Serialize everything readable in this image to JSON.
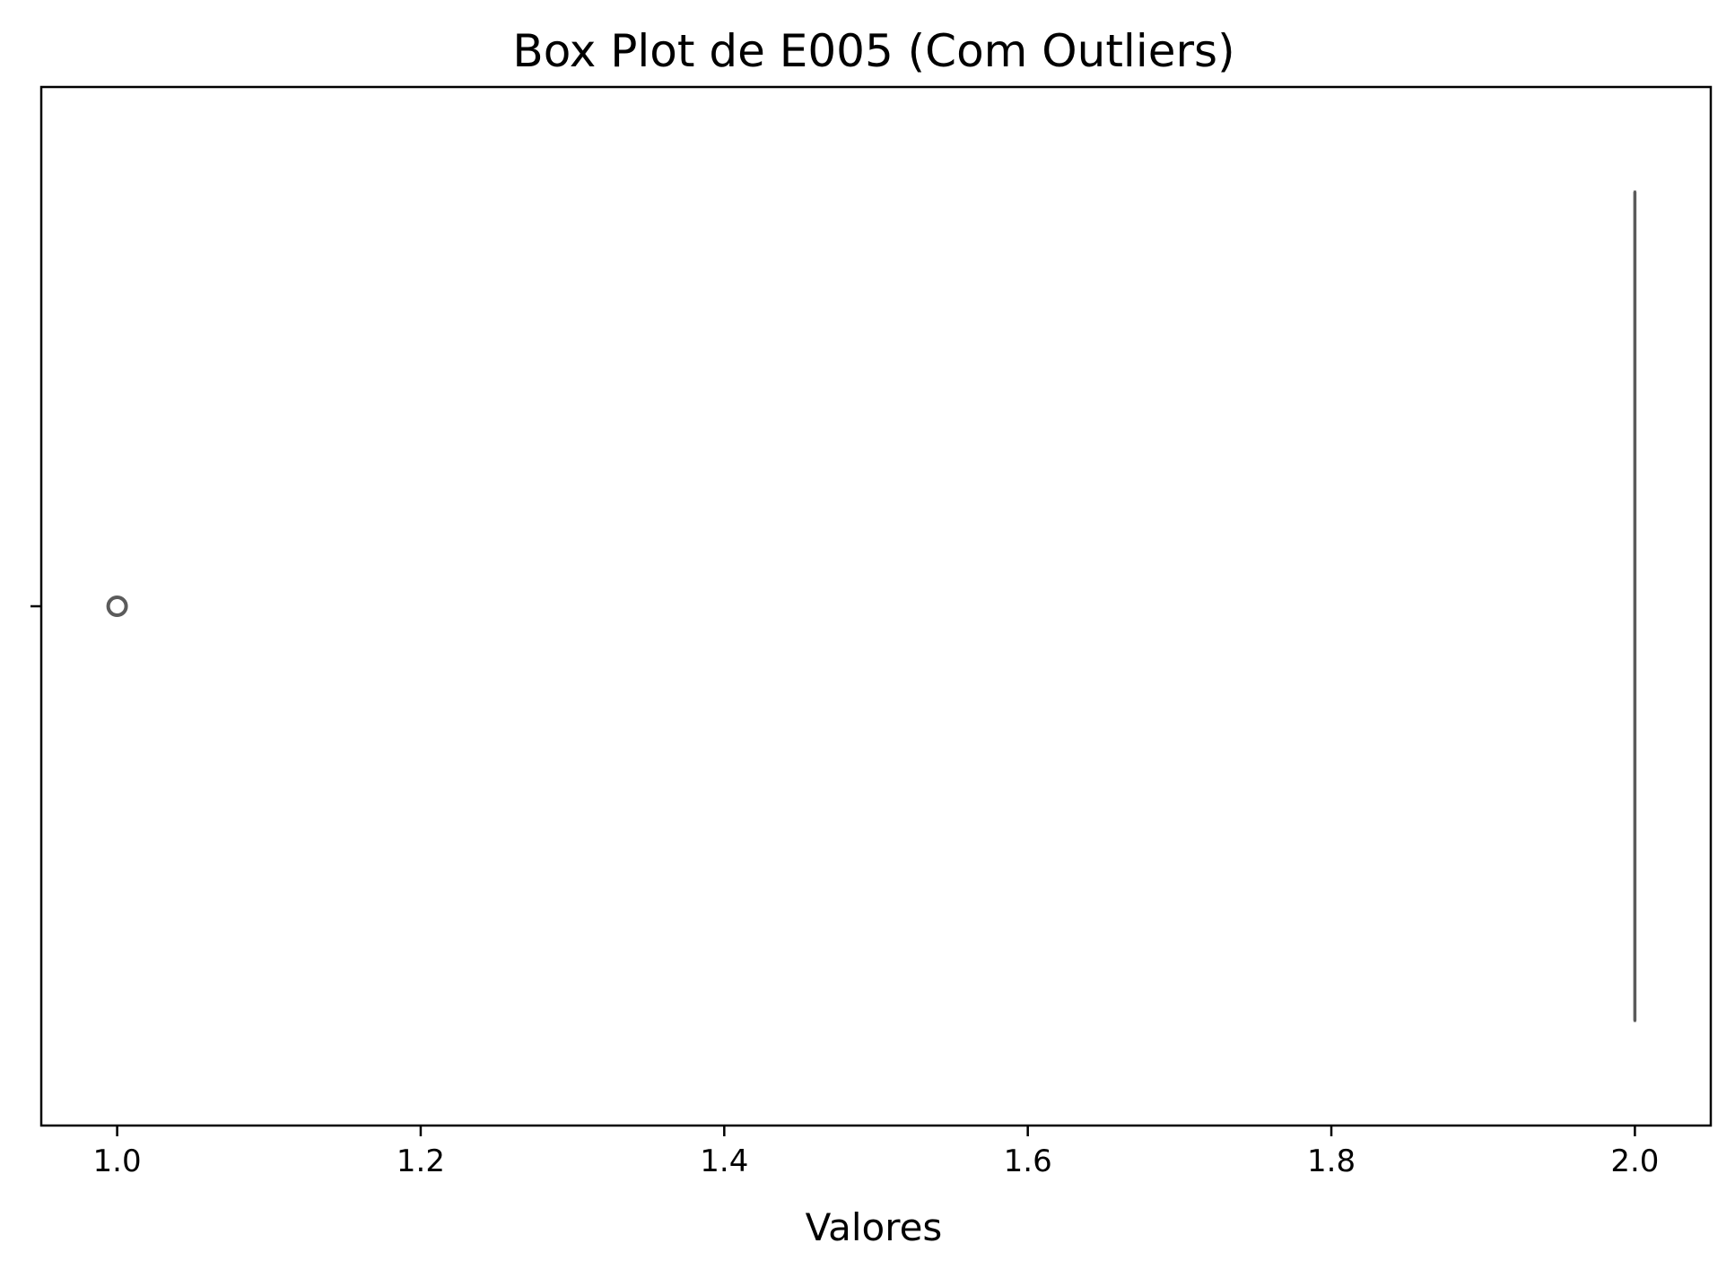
{
  "chart_data": {
    "type": "box",
    "title": "Box Plot de E005 (Com Outliers)",
    "xlabel": "Valores",
    "ylabel": "",
    "orientation": "horizontal",
    "xlim": [
      0.95,
      2.05
    ],
    "x_ticks": [
      1.0,
      1.2,
      1.4,
      1.6,
      1.8,
      2.0
    ],
    "x_tick_labels": [
      "1.0",
      "1.2",
      "1.4",
      "1.6",
      "1.8",
      "2.0"
    ],
    "series": [
      {
        "q1": 2.0,
        "median": 2.0,
        "q3": 2.0,
        "whisker_low": 2.0,
        "whisker_high": 2.0,
        "outliers": [
          1.0
        ]
      }
    ],
    "grid": false,
    "colors": {
      "box": "#5b5b5b",
      "outlier": "#5b5b5b",
      "axis": "#000000"
    }
  }
}
